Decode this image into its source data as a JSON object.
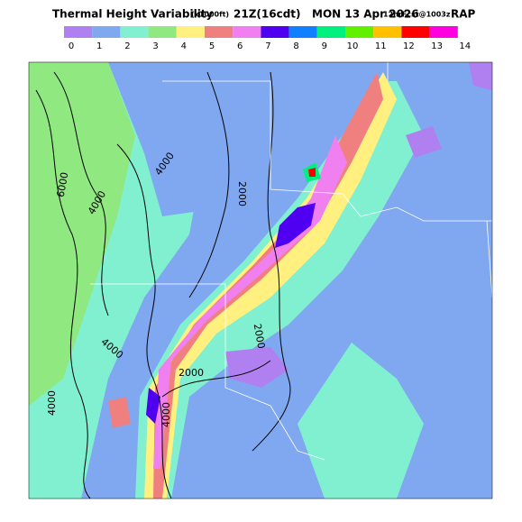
{
  "header": {
    "title": "Thermal Height Variability",
    "unit": "(x1000ft)",
    "valid": "21Z(16cdt)",
    "date": "MON 13 Apr 2026",
    "forecast": "12hrFcst@1003z",
    "model": "RAP"
  },
  "colorbar": {
    "labels": [
      "0",
      "1",
      "2",
      "3",
      "4",
      "5",
      "6",
      "7",
      "8",
      "9",
      "10",
      "11",
      "12",
      "13",
      "14"
    ],
    "colors": [
      "#b080f0",
      "#80a8f0",
      "#80f0d0",
      "#90e880",
      "#fff080",
      "#f08080",
      "#f080f0",
      "#5000f0",
      "#1080ff",
      "#00f080",
      "#60f000",
      "#ffc000",
      "#ff0000",
      "#ff00e0"
    ]
  },
  "contour_labels": [
    "6000",
    "4000",
    "4000",
    "2000",
    "2000",
    "4000",
    "2000",
    "4000",
    "4000"
  ]
}
